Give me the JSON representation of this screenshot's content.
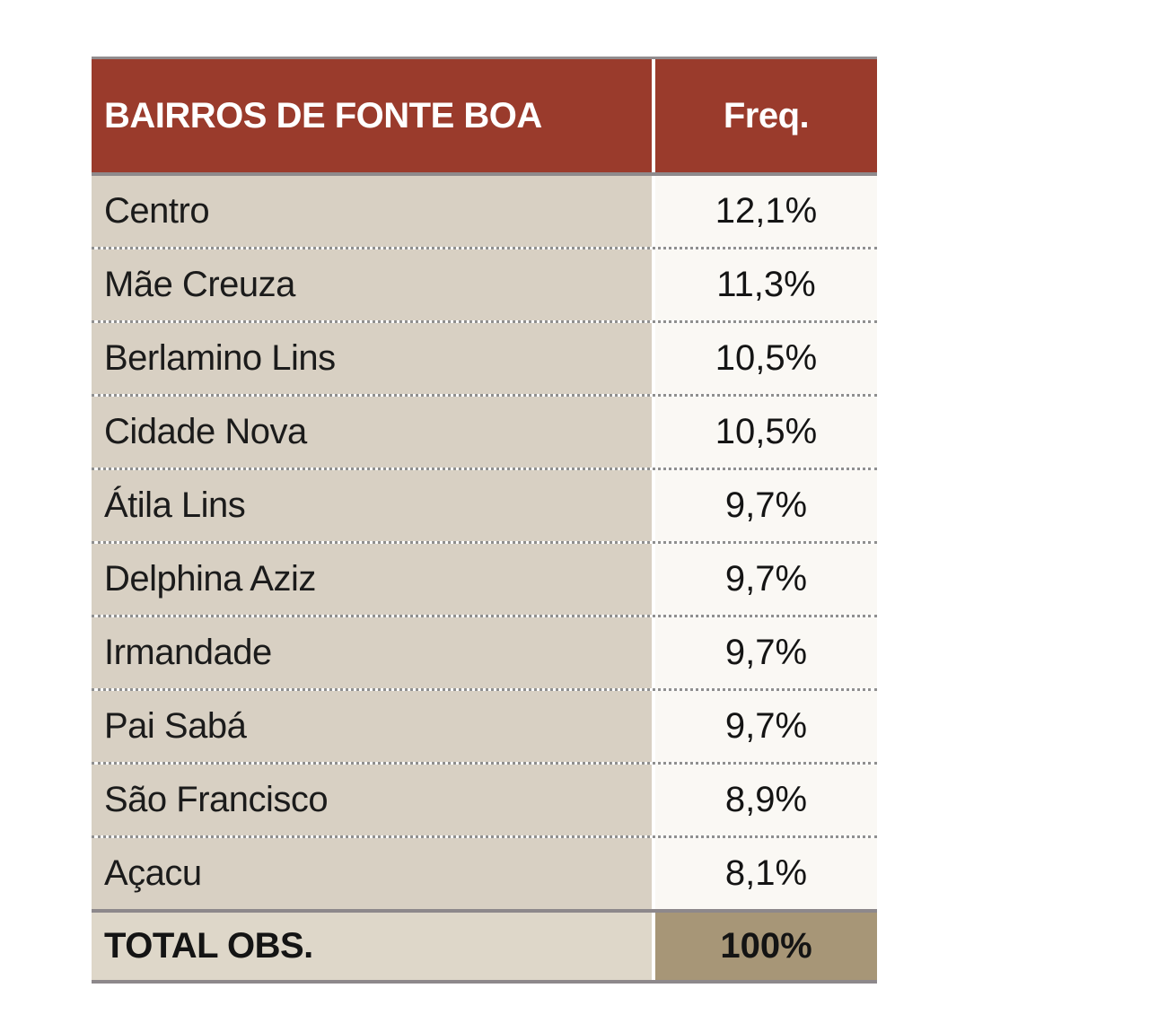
{
  "table": {
    "header": {
      "col1": "BAIRROS DE FONTE BOA",
      "col2": "Freq."
    },
    "rows": [
      {
        "name": "Centro",
        "freq": "12,1%"
      },
      {
        "name": "Mãe Creuza",
        "freq": "11,3%"
      },
      {
        "name": "Berlamino Lins",
        "freq": "10,5%"
      },
      {
        "name": "Cidade Nova",
        "freq": "10,5%"
      },
      {
        "name": "Átila Lins",
        "freq": "9,7%"
      },
      {
        "name": "Delphina Aziz",
        "freq": "9,7%"
      },
      {
        "name": "Irmandade",
        "freq": "9,7%"
      },
      {
        "name": "Pai Sabá",
        "freq": "9,7%"
      },
      {
        "name": "São Francisco",
        "freq": "8,9%"
      },
      {
        "name": "Açacu",
        "freq": "8,1%"
      }
    ],
    "total": {
      "label": "TOTAL OBS.",
      "freq": "100%"
    }
  },
  "colors": {
    "header_background": "#9a3b2c",
    "header_text": "#ffffff",
    "row_left_background": "#d8d0c3",
    "row_right_background": "#faf8f4",
    "total_left_background": "#ded7c9",
    "total_right_background": "#a79677",
    "border_gray": "#8d888b",
    "dotted_separator": "#8f8f8f",
    "body_text": "#1b1b1b",
    "page_background": "#ffffff"
  },
  "chart_data": {
    "type": "table",
    "title": "BAIRROS DE FONTE BOA",
    "columns": [
      "BAIRROS DE FONTE BOA",
      "Freq."
    ],
    "categories": [
      "Centro",
      "Mãe Creuza",
      "Berlamino Lins",
      "Cidade Nova",
      "Átila Lins",
      "Delphina Aziz",
      "Irmandade",
      "Pai Sabá",
      "São Francisco",
      "Açacu"
    ],
    "values_percent": [
      12.1,
      11.3,
      10.5,
      10.5,
      9.7,
      9.7,
      9.7,
      9.7,
      8.9,
      8.1
    ],
    "value_labels": [
      "12,1%",
      "11,3%",
      "10,5%",
      "10,5%",
      "9,7%",
      "9,7%",
      "9,7%",
      "9,7%",
      "8,9%",
      "8,1%"
    ],
    "total_label": "TOTAL OBS.",
    "total_value": "100%",
    "decimal_separator": ","
  }
}
